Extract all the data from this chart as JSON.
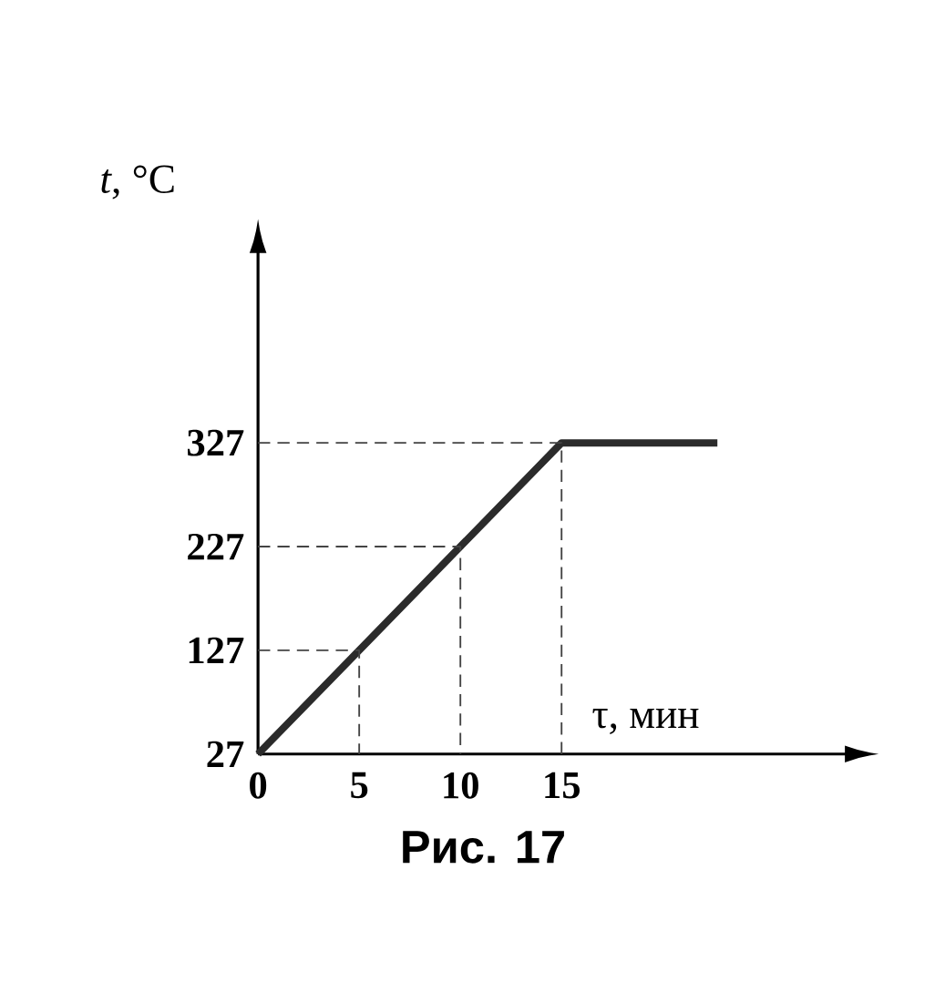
{
  "chart_data": {
    "type": "line",
    "xlabel": "τ, мин",
    "ylabel": "*t*, °C",
    "annotations": [
      "Рис. 17"
    ],
    "marker": "none",
    "grid": false,
    "xlim": [
      0,
      29
    ],
    "ylim": [
      27,
      510
    ],
    "xticks": [
      0,
      5,
      10,
      15
    ],
    "yticks": [
      27,
      127,
      227,
      327
    ],
    "series": [
      {
        "color": "#2b2b2b",
        "line_style": "solid",
        "x": [
          0,
          15,
          22.7
        ],
        "values": [
          27,
          327,
          327
        ]
      },
      {
        "color": "#444444",
        "line_style": "dashed",
        "x": [
          0,
          5,
          5
        ],
        "values": [
          127,
          127,
          27
        ]
      },
      {
        "color": "#444444",
        "line_style": "dashed",
        "x": [
          0,
          10,
          10
        ],
        "values": [
          227,
          227,
          27
        ]
      },
      {
        "color": "#444444",
        "line_style": "dashed",
        "x": [
          0,
          15,
          15
        ],
        "values": [
          327,
          327,
          27
        ]
      }
    ]
  }
}
